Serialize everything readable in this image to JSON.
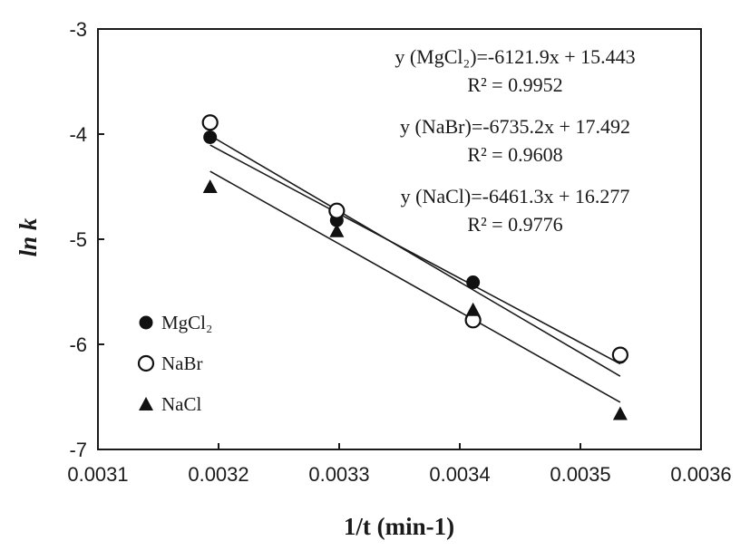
{
  "chart_data": {
    "type": "scatter",
    "xlabel": "1/t (min-1)",
    "ylabel": "ln k",
    "xlim": [
      0.0031,
      0.0036
    ],
    "ylim": [
      -7,
      -3
    ],
    "x_ticks": [
      "0.0031",
      "0.0032",
      "0.0033",
      "0.0034",
      "0.0035",
      "0.0036"
    ],
    "y_ticks": [
      "-3",
      "-4",
      "-5",
      "-6",
      "-7"
    ],
    "grid": false,
    "legend_position": "bottom-left",
    "series": [
      {
        "name": "MgCl₂",
        "marker": "filled-circle",
        "x": [
          0.003193,
          0.003298,
          0.003411,
          0.003533
        ],
        "y": [
          -4.03,
          -4.82,
          -5.41,
          -6.12
        ],
        "fit": {
          "slope": -6121.9,
          "intercept": 15.443
        },
        "equation": "y (MgCl₂)=-6121.9x  + 15.443",
        "r2": "R² = 0.9952"
      },
      {
        "name": "NaBr",
        "marker": "open-circle",
        "x": [
          0.003193,
          0.003298,
          0.003411,
          0.003533
        ],
        "y": [
          -3.89,
          -4.73,
          -5.77,
          -6.1
        ],
        "fit": {
          "slope": -6735.2,
          "intercept": 17.492
        },
        "equation": "y (NaBr)=-6735.2x  + 17.492",
        "r2": "R² = 0.9608"
      },
      {
        "name": "NaCl",
        "marker": "filled-triangle",
        "x": [
          0.003193,
          0.003298,
          0.003411,
          0.003533
        ],
        "y": [
          -4.5,
          -4.92,
          -5.67,
          -6.66
        ],
        "fit": {
          "slope": -6461.3,
          "intercept": 16.277
        },
        "equation": "y (NaCl)=-6461.3x  + 16.277",
        "r2": "R² = 0.9776"
      }
    ]
  }
}
